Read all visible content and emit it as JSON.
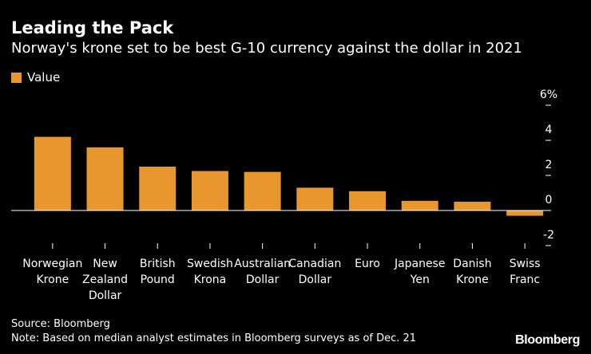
{
  "header": {
    "title": "Leading the Pack",
    "subtitle": "Norway's krone set to be best G-10 currency against the dollar in 2021"
  },
  "legend": {
    "label": "Value"
  },
  "footer": {
    "source": "Source: Bloomberg",
    "note": "Note: Based on median analyst estimates in Bloomberg surveys as of Dec. 21",
    "brand": "Bloomberg"
  },
  "colors": {
    "bar": "#E8962E",
    "background": "#000000",
    "text": "#FFFFFF",
    "axis": "#FFFFFF"
  },
  "chart_data": {
    "type": "bar",
    "title": "Leading the Pack",
    "subtitle": "Norway's krone set to be best G-10 currency against the dollar in 2021",
    "xlabel": "",
    "ylabel": "",
    "ylim": [
      -2,
      6
    ],
    "yticks": [
      -2,
      0,
      2,
      4,
      6
    ],
    "ytick_labels": [
      "-2",
      "0",
      "2",
      "4",
      "6%"
    ],
    "y_axis_side": "right",
    "legend_position": "top-left",
    "categories": [
      [
        "Norwegian",
        "Krone"
      ],
      [
        "New",
        "Zealand",
        "Dollar"
      ],
      [
        "British",
        "Pound"
      ],
      [
        "Swedish",
        "Krona"
      ],
      [
        "Australian",
        "Dollar"
      ],
      [
        "Canadian",
        "Dollar"
      ],
      [
        "Euro"
      ],
      [
        "Japanese",
        "Yen"
      ],
      [
        "Danish",
        "Krone"
      ],
      [
        "Swiss",
        "Franc"
      ]
    ],
    "series": [
      {
        "name": "Value",
        "values": [
          4.2,
          3.6,
          2.5,
          2.25,
          2.2,
          1.3,
          1.1,
          0.55,
          0.5,
          -0.3
        ]
      }
    ]
  }
}
